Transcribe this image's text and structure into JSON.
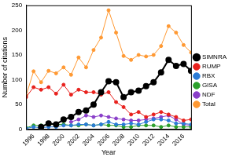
{
  "chart_data": {
    "type": "line",
    "x_label": "Year",
    "y_label": "Number of citations",
    "x": [
      1995,
      1996,
      1997,
      1998,
      1999,
      2000,
      2001,
      2002,
      2003,
      2004,
      2005,
      2006,
      2007,
      2008,
      2009,
      2010,
      2011,
      2012,
      2013,
      2014,
      2015,
      2016,
      2017
    ],
    "series": [
      {
        "name": "SIMNRA",
        "color": "#000000",
        "marker": "circle",
        "line_style": "solid",
        "values": [
          null,
          null,
          5,
          12,
          10,
          20,
          25,
          35,
          38,
          50,
          75,
          97,
          95,
          65,
          75,
          78,
          87,
          95,
          115,
          140,
          128,
          132,
          118
        ]
      },
      {
        "name": "RUMP",
        "color": "#e8211d",
        "marker": "circle",
        "line_style": "solid",
        "values": [
          65,
          85,
          80,
          85,
          72,
          90,
          70,
          80,
          75,
          75,
          70,
          75,
          55,
          45,
          30,
          35,
          25,
          30,
          35,
          30,
          25,
          18,
          20
        ]
      },
      {
        "name": "RBX",
        "color": "#2b7bd6",
        "marker": "circle",
        "line_style": "solid",
        "values": [
          2,
          5,
          3,
          5,
          5,
          8,
          8,
          10,
          10,
          8,
          10,
          15,
          10,
          10,
          12,
          10,
          15,
          20,
          20,
          18,
          12,
          12,
          10
        ]
      },
      {
        "name": "GISA",
        "color": "#2ca02c",
        "marker": "circle",
        "line_style": "solid",
        "values": [
          3,
          8,
          8,
          10,
          10,
          10,
          8,
          8,
          10,
          8,
          10,
          8,
          8,
          5,
          5,
          8,
          8,
          8,
          5,
          8,
          5,
          5,
          5
        ]
      },
      {
        "name": "NDF",
        "color": "#8a3fc9",
        "marker": "circle",
        "line_style": "solid",
        "values": [
          null,
          null,
          null,
          null,
          null,
          null,
          15,
          20,
          28,
          25,
          28,
          25,
          22,
          20,
          18,
          18,
          20,
          22,
          25,
          28,
          20,
          10,
          8
        ]
      },
      {
        "name": "Total",
        "color": "#ff9933",
        "marker": "circle",
        "line_style": "solid",
        "values": [
          68,
          117,
          95,
          118,
          113,
          125,
          110,
          145,
          125,
          160,
          185,
          240,
          195,
          148,
          140,
          150,
          147,
          150,
          168,
          208,
          195,
          170,
          155
        ]
      }
    ],
    "xlim": [
      1995,
      2017
    ],
    "xticks": [
      1996,
      1998,
      2000,
      2002,
      2004,
      2006,
      2008,
      2010,
      2012,
      2014,
      2016
    ],
    "ylim": [
      0,
      250
    ],
    "yticks": [
      0,
      50,
      100,
      150,
      200,
      250
    ],
    "grid": false,
    "legend": "right"
  }
}
